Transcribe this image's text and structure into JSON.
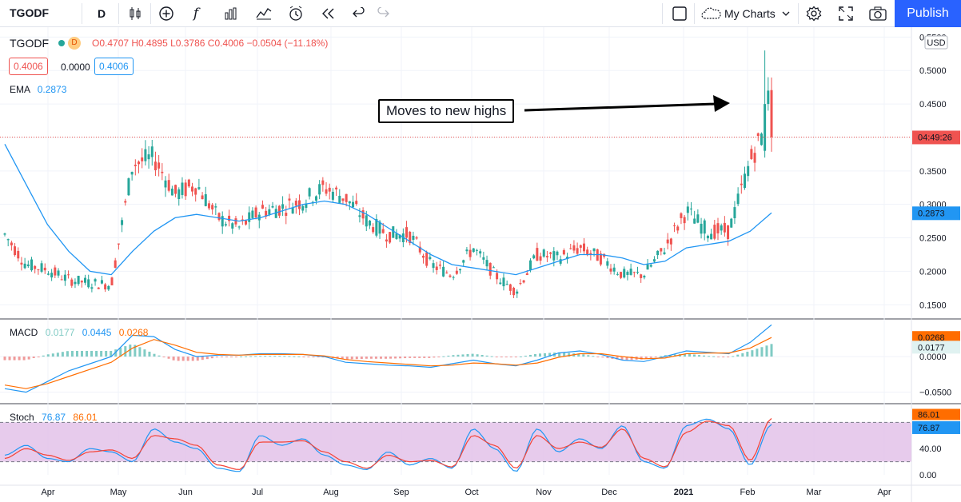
{
  "toolbar": {
    "symbol": "TGODF",
    "interval": "D",
    "fx_label": "f",
    "my_charts": "My Charts",
    "publish": "Publish",
    "icons": [
      "compare-icon",
      "candles-icon",
      "add-indicator-icon",
      "fx-icon",
      "bar-chart-icon",
      "templates-icon",
      "alert-icon",
      "replay-icon",
      "undo-icon",
      "redo-icon",
      "square-icon",
      "cloud-icon",
      "gear-icon",
      "fullscreen-icon",
      "camera-icon"
    ]
  },
  "legend": {
    "symbol": "TGODF",
    "badge": "D",
    "ohlc": "O0.4707  H0.4895  L0.3786  C0.4006  −0.0504 (−11.18%)",
    "bid": "0.4006",
    "spread": "0.0000",
    "ask": "0.4006",
    "ema_label": "EMA",
    "ema_value": "0.2873",
    "macd_label": "MACD",
    "macd_hist": "0.0177",
    "macd_line": "0.0445",
    "macd_signal": "0.0268",
    "stoch_label": "Stoch",
    "stoch_k": "76.87",
    "stoch_d": "86.01"
  },
  "annotation": {
    "text": "Moves to new highs"
  },
  "price_axis": {
    "currency": "USD",
    "last_price_time": "04:49:26",
    "ema_tag": "0.2873",
    "ticks": [
      "0.5500",
      "0.5000",
      "0.4500",
      "0.4000",
      "0.3500",
      "0.3000",
      "0.2500",
      "0.2000",
      "0.1500"
    ]
  },
  "macd_axis": {
    "ticks": [
      "0.0000",
      "−0.0500"
    ],
    "tag_signal": "0.0268",
    "tag_hist": "0.0177"
  },
  "stoch_axis": {
    "ticks": [
      "40.00",
      "0.00"
    ],
    "tag_d": "86.01",
    "tag_k": "76.87"
  },
  "time_axis": [
    "Apr",
    "May",
    "Jun",
    "Jul",
    "Aug",
    "Sep",
    "Oct",
    "Nov",
    "Dec",
    "2021",
    "Feb",
    "Mar",
    "Apr"
  ],
  "colors": {
    "up": "#26a69a",
    "down": "#ef5350",
    "ema": "#2196f3",
    "macd": "#2196f3",
    "signal": "#ff6d00",
    "stoch_k": "#2196f3",
    "stoch_d": "#f44336",
    "stoch_band": "#e1bee7"
  },
  "chart_data": [
    {
      "type": "candlestick",
      "series_name": "TGODF",
      "ylim": [
        0.13,
        0.56
      ],
      "x_months": [
        "Apr",
        "May",
        "Jun",
        "Jul",
        "Aug",
        "Sep",
        "Oct",
        "Nov",
        "Dec",
        "2021",
        "Feb",
        "Mar",
        "Apr"
      ],
      "anchors": [
        [
          0.24,
          0.27
        ],
        [
          0.2,
          0.22
        ],
        [
          0.205,
          0.2
        ],
        [
          0.19,
          0.185
        ],
        [
          0.18,
          0.185
        ],
        [
          0.185,
          0.175
        ],
        [
          0.3,
          0.42
        ],
        [
          0.4,
          0.34
        ],
        [
          0.32,
          0.31
        ],
        [
          0.36,
          0.3
        ],
        [
          0.29,
          0.27
        ],
        [
          0.27,
          0.26
        ],
        [
          0.28,
          0.3
        ],
        [
          0.3,
          0.29
        ],
        [
          0.31,
          0.3
        ],
        [
          0.34,
          0.31
        ],
        [
          0.32,
          0.3
        ],
        [
          0.3,
          0.25
        ],
        [
          0.25,
          0.26
        ],
        [
          0.27,
          0.24
        ],
        [
          0.23,
          0.19
        ],
        [
          0.19,
          0.2
        ],
        [
          0.22,
          0.25
        ],
        [
          0.21,
          0.18
        ],
        [
          0.17,
          0.17
        ],
        [
          0.2,
          0.25
        ],
        [
          0.24,
          0.2
        ],
        [
          0.22,
          0.25
        ],
        [
          0.23,
          0.21
        ],
        [
          0.2,
          0.19
        ],
        [
          0.19,
          0.2
        ],
        [
          0.22,
          0.25
        ],
        [
          0.28,
          0.3
        ],
        [
          0.28,
          0.24
        ],
        [
          0.24,
          0.28
        ],
        [
          0.33,
          0.4
        ],
        [
          0.47,
          0.4
        ]
      ],
      "ema": [
        0.39,
        0.33,
        0.27,
        0.23,
        0.2,
        0.195,
        0.23,
        0.26,
        0.28,
        0.285,
        0.28,
        0.275,
        0.28,
        0.29,
        0.3,
        0.305,
        0.3,
        0.285,
        0.265,
        0.245,
        0.225,
        0.21,
        0.205,
        0.2,
        0.195,
        0.205,
        0.215,
        0.225,
        0.225,
        0.22,
        0.21,
        0.215,
        0.235,
        0.24,
        0.245,
        0.26,
        0.2873
      ]
    },
    {
      "type": "line",
      "series_name": "MACD",
      "ylim": [
        -0.065,
        0.045
      ],
      "macd": [
        -0.045,
        -0.05,
        -0.035,
        -0.02,
        -0.01,
        0.0,
        0.03,
        0.028,
        0.01,
        0.0,
        0.002,
        0.002,
        0.004,
        0.004,
        0.003,
        0.0,
        -0.008,
        -0.01,
        -0.012,
        -0.013,
        -0.015,
        -0.01,
        -0.005,
        -0.01,
        -0.013,
        -0.005,
        0.005,
        0.008,
        0.003,
        -0.005,
        -0.007,
        0.0,
        0.008,
        0.006,
        0.004,
        0.02,
        0.0445
      ],
      "signal": [
        -0.04,
        -0.045,
        -0.038,
        -0.028,
        -0.018,
        -0.008,
        0.012,
        0.024,
        0.016,
        0.006,
        0.003,
        0.002,
        0.003,
        0.003,
        0.003,
        0.001,
        -0.004,
        -0.007,
        -0.009,
        -0.011,
        -0.013,
        -0.012,
        -0.009,
        -0.01,
        -0.012,
        -0.009,
        -0.001,
        0.004,
        0.004,
        0.0,
        -0.003,
        -0.002,
        0.004,
        0.005,
        0.005,
        0.012,
        0.0268
      ]
    },
    {
      "type": "line",
      "series_name": "Stoch",
      "ylim": [
        0,
        100
      ],
      "bands": [
        20,
        80
      ],
      "k": [
        30,
        45,
        25,
        20,
        40,
        35,
        20,
        70,
        50,
        40,
        10,
        5,
        60,
        45,
        55,
        30,
        15,
        8,
        35,
        15,
        25,
        10,
        70,
        40,
        5,
        70,
        35,
        55,
        40,
        75,
        20,
        10,
        75,
        85,
        70,
        15,
        76.87
      ],
      "d": [
        25,
        40,
        30,
        22,
        35,
        38,
        25,
        60,
        55,
        45,
        15,
        8,
        50,
        50,
        52,
        35,
        20,
        10,
        30,
        20,
        22,
        12,
        60,
        45,
        10,
        60,
        40,
        50,
        42,
        70,
        25,
        12,
        65,
        82,
        75,
        22,
        86.01
      ]
    }
  ]
}
